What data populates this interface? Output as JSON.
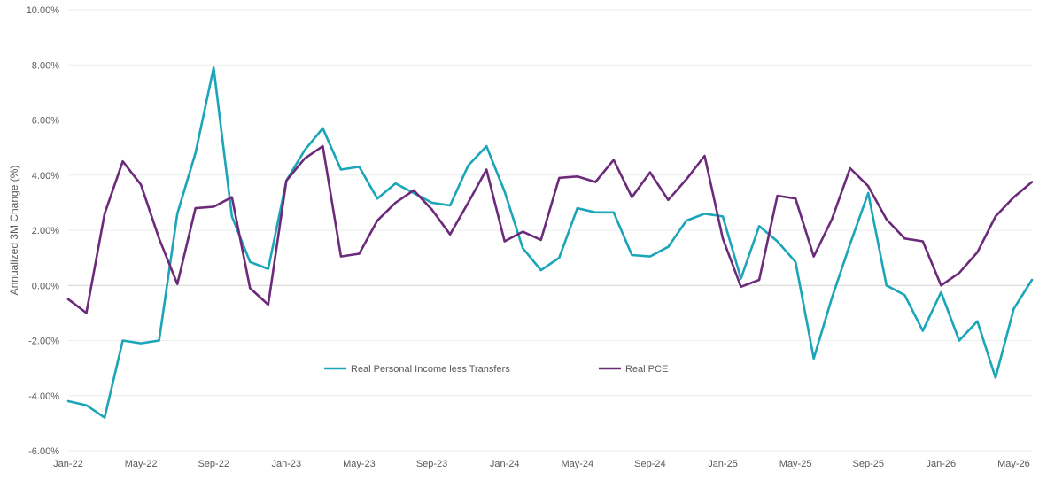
{
  "chart_data": {
    "type": "line",
    "title": "",
    "xlabel": "",
    "ylabel": "Annualized 3M Change (%)",
    "ylim": [
      -6,
      10
    ],
    "y_ticks": [
      -6,
      -4,
      -2,
      0,
      2,
      4,
      6,
      8,
      10
    ],
    "y_tick_labels": [
      "-6.00%",
      "-4.00%",
      "-2.00%",
      "0.00%",
      "2.00%",
      "4.00%",
      "6.00%",
      "8.00%",
      "10.00%"
    ],
    "x": [
      "Jan-22",
      "Feb-22",
      "Mar-22",
      "Apr-22",
      "May-22",
      "Jun-22",
      "Jul-22",
      "Aug-22",
      "Sep-22",
      "Oct-22",
      "Nov-22",
      "Dec-22",
      "Jan-23",
      "Feb-23",
      "Mar-23",
      "Apr-23",
      "May-23",
      "Jun-23",
      "Jul-23",
      "Aug-23",
      "Sep-23",
      "Oct-23",
      "Nov-23",
      "Dec-23",
      "Jan-24",
      "Feb-24",
      "Mar-24",
      "Apr-24",
      "May-24",
      "Jun-24",
      "Jul-24",
      "Aug-24",
      "Sep-24",
      "Oct-24",
      "Nov-24",
      "Dec-24",
      "Jan-25",
      "Feb-25",
      "Mar-25",
      "Apr-25",
      "May-25",
      "Jun-25",
      "Jul-25",
      "Aug-25",
      "Sep-25",
      "Oct-25",
      "Nov-25",
      "Dec-25",
      "Jan-26",
      "Feb-26",
      "Mar-26",
      "Apr-26",
      "May-26",
      "Jun-26"
    ],
    "x_tick_labels": [
      "Jan-22",
      "May-22",
      "Sep-22",
      "Jan-23",
      "May-23",
      "Sep-23",
      "Jan-24",
      "May-24",
      "Sep-24",
      "Jan-25",
      "May-25",
      "Sep-25",
      "Jan-26",
      "May-26"
    ],
    "x_tick_indices": [
      0,
      4,
      8,
      12,
      16,
      20,
      24,
      28,
      32,
      36,
      40,
      44,
      48,
      52
    ],
    "grid": true,
    "legend_position": "center-bottom",
    "series": [
      {
        "name": "Real Personal Income less Transfers",
        "color": "#1aa5b8",
        "values": [
          -4.2,
          -4.35,
          -4.8,
          -2.0,
          -2.1,
          -2.0,
          2.6,
          4.8,
          7.9,
          2.5,
          0.85,
          0.6,
          3.8,
          4.9,
          5.7,
          4.2,
          4.3,
          3.15,
          3.7,
          3.35,
          3.0,
          2.9,
          4.35,
          5.05,
          3.4,
          1.35,
          0.55,
          1.0,
          2.8,
          2.65,
          2.65,
          1.1,
          1.05,
          1.4,
          2.35,
          2.6,
          2.5,
          0.25,
          2.15,
          1.6,
          0.85,
          -2.65,
          -0.45,
          1.5,
          3.35,
          0.0,
          -0.35,
          -1.65,
          -0.25,
          -2.0,
          -1.3,
          -3.35,
          -0.85,
          0.2
        ]
      },
      {
        "name": "Real PCE",
        "color": "#6b2a7a",
        "values": [
          -0.5,
          -1.0,
          2.6,
          4.5,
          3.65,
          1.7,
          0.05,
          2.8,
          2.85,
          3.2,
          -0.1,
          -0.7,
          3.8,
          4.6,
          5.05,
          1.05,
          1.15,
          2.35,
          3.0,
          3.45,
          2.75,
          1.85,
          3.0,
          4.2,
          1.6,
          1.95,
          1.65,
          3.9,
          3.95,
          3.75,
          4.55,
          3.2,
          4.1,
          3.1,
          3.85,
          4.7,
          1.7,
          -0.05,
          0.2,
          3.25,
          3.15,
          1.05,
          2.4,
          4.25,
          3.6,
          2.4,
          1.7,
          1.6,
          0.0,
          0.45,
          1.2,
          2.5,
          3.2,
          3.75
        ]
      }
    ]
  }
}
